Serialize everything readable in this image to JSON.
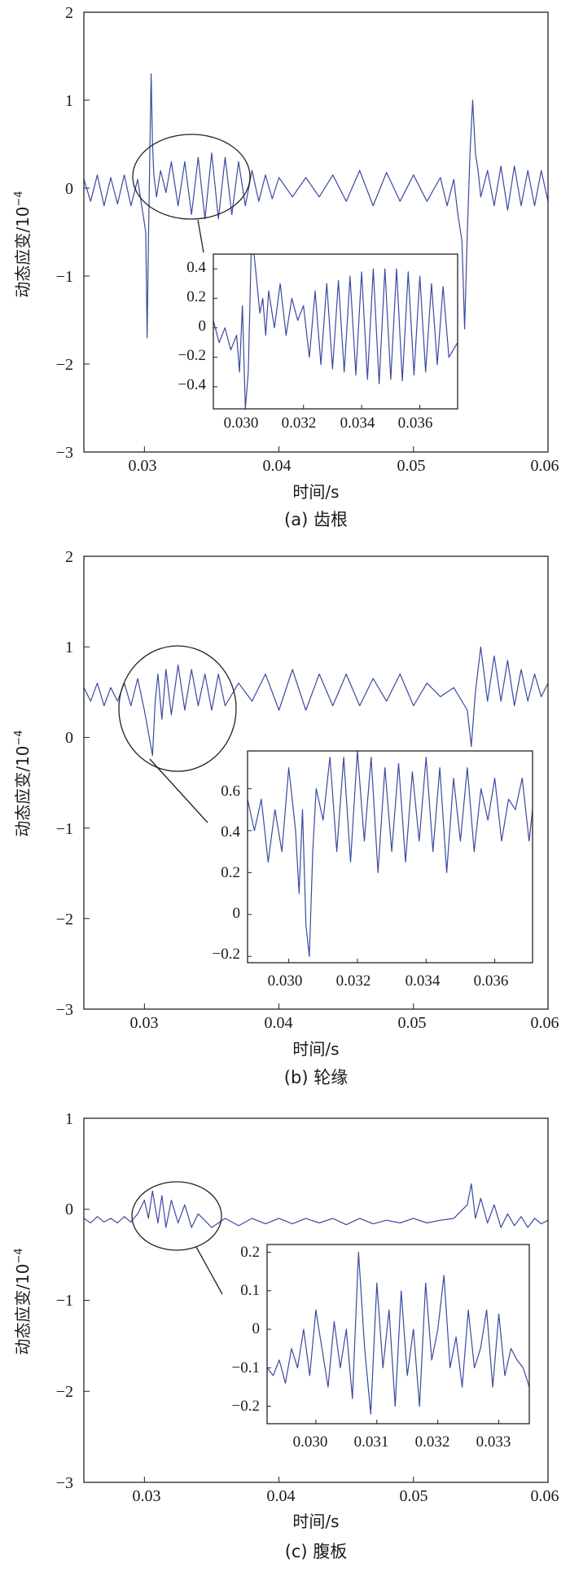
{
  "figure": {
    "line_color": "#3a4aa0",
    "y_unit": "10",
    "y_exponent": "−4"
  },
  "chart_data": [
    {
      "type": "line",
      "caption": "(a) 齿根",
      "xlabel": "时间/s",
      "ylabel": "动态应变/10",
      "ylabel_exp": "−4",
      "xlim": [
        0.0255,
        0.06
      ],
      "ylim": [
        -3,
        2
      ],
      "xticks": [
        0.03,
        0.04,
        0.05,
        0.06
      ],
      "xtick_labels": [
        "0.03",
        "0.04",
        "0.05",
        "0.06"
      ],
      "yticks": [
        2,
        1,
        0,
        -1,
        -2,
        -3
      ],
      "ytick_labels": [
        "2",
        "1",
        "0",
        "−1",
        "−2",
        "−3"
      ],
      "series": [
        {
          "name": "strain",
          "x": [
            0.0255,
            0.026,
            0.0265,
            0.027,
            0.0275,
            0.028,
            0.0285,
            0.029,
            0.0295,
            0.0298,
            0.0301,
            0.0302,
            0.0303,
            0.0304,
            0.0305,
            0.0306,
            0.0307,
            0.0309,
            0.0312,
            0.0316,
            0.032,
            0.0325,
            0.033,
            0.0335,
            0.034,
            0.0345,
            0.035,
            0.0355,
            0.036,
            0.0365,
            0.037,
            0.0375,
            0.038,
            0.0385,
            0.039,
            0.0395,
            0.04,
            0.041,
            0.042,
            0.043,
            0.044,
            0.045,
            0.046,
            0.047,
            0.048,
            0.049,
            0.05,
            0.051,
            0.052,
            0.0525,
            0.053,
            0.0533,
            0.0536,
            0.0538,
            0.054,
            0.0542,
            0.0544,
            0.0546,
            0.0548,
            0.055,
            0.0555,
            0.056,
            0.0565,
            0.057,
            0.0575,
            0.058,
            0.0585,
            0.059,
            0.0595,
            0.06
          ],
          "values": [
            0.1,
            -0.15,
            0.15,
            -0.2,
            0.12,
            -0.18,
            0.15,
            -0.2,
            0.1,
            -0.2,
            -0.5,
            -1.7,
            -0.6,
            0.4,
            1.3,
            0.5,
            0.15,
            -0.1,
            0.2,
            -0.05,
            0.3,
            -0.2,
            0.3,
            -0.3,
            0.35,
            -0.35,
            0.4,
            -0.35,
            0.35,
            -0.3,
            0.3,
            -0.2,
            0.2,
            -0.15,
            0.15,
            -0.12,
            0.12,
            -0.1,
            0.12,
            -0.1,
            0.15,
            -0.15,
            0.2,
            -0.2,
            0.18,
            -0.15,
            0.15,
            -0.15,
            0.12,
            -0.2,
            0.1,
            -0.3,
            -0.6,
            -1.6,
            -0.5,
            0.4,
            1.0,
            0.4,
            0.2,
            -0.1,
            0.2,
            -0.2,
            0.25,
            -0.25,
            0.25,
            -0.2,
            0.2,
            -0.2,
            0.2,
            -0.15
          ]
        }
      ],
      "inset": {
        "xlim": [
          0.0289,
          0.0373
        ],
        "ylim": [
          -0.55,
          0.5
        ],
        "xticks": [
          0.03,
          0.032,
          0.034,
          0.036
        ],
        "xtick_labels": [
          "0.030",
          "0.032",
          "0.034",
          "0.036"
        ],
        "yticks": [
          0.4,
          0.2,
          0,
          -0.2,
          -0.4
        ],
        "ytick_labels": [
          "0.4",
          "0.2",
          "0",
          "−0.2",
          "−0.4"
        ],
        "x": [
          0.0289,
          0.0291,
          0.0293,
          0.0295,
          0.0297,
          0.0298,
          0.0299,
          0.03,
          0.0301,
          0.0302,
          0.0303,
          0.0304,
          0.0305,
          0.0306,
          0.0307,
          0.0308,
          0.031,
          0.0312,
          0.0314,
          0.0316,
          0.0318,
          0.032,
          0.0322,
          0.0324,
          0.0326,
          0.0328,
          0.033,
          0.0332,
          0.0334,
          0.0336,
          0.0338,
          0.034,
          0.0342,
          0.0344,
          0.0346,
          0.0348,
          0.035,
          0.0352,
          0.0354,
          0.0356,
          0.0358,
          0.036,
          0.0362,
          0.0364,
          0.0366,
          0.0368,
          0.037,
          0.0373
        ],
        "values": [
          0.05,
          -0.1,
          0.0,
          -0.15,
          -0.05,
          -0.3,
          0.15,
          -0.55,
          -0.3,
          0.5,
          0.5,
          0.3,
          0.1,
          0.2,
          -0.05,
          0.25,
          0.0,
          0.3,
          -0.05,
          0.2,
          0.05,
          0.15,
          -0.2,
          0.25,
          -0.25,
          0.3,
          -0.28,
          0.32,
          -0.3,
          0.35,
          -0.32,
          0.38,
          -0.35,
          0.4,
          -0.38,
          0.4,
          -0.35,
          0.4,
          -0.36,
          0.38,
          -0.32,
          0.35,
          -0.3,
          0.3,
          -0.25,
          0.28,
          -0.2,
          -0.1
        ]
      }
    },
    {
      "type": "line",
      "caption": "(b) 轮缘",
      "xlabel": "时间/s",
      "ylabel": "动态应变/10",
      "ylabel_exp": "−4",
      "xlim": [
        0.0255,
        0.06
      ],
      "ylim": [
        -3,
        2
      ],
      "xticks": [
        0.03,
        0.04,
        0.05,
        0.06
      ],
      "xtick_labels": [
        "0.03",
        "0.04",
        "0.05",
        "0.06"
      ],
      "yticks": [
        2,
        1,
        0,
        -1,
        -2,
        -3
      ],
      "ytick_labels": [
        "2",
        "1",
        "0",
        "−1",
        "−2",
        "−3"
      ],
      "series": [
        {
          "name": "strain",
          "x": [
            0.0255,
            0.026,
            0.0265,
            0.027,
            0.0275,
            0.028,
            0.0285,
            0.029,
            0.0295,
            0.03,
            0.0303,
            0.0306,
            0.0308,
            0.031,
            0.0313,
            0.0316,
            0.032,
            0.0325,
            0.033,
            0.0335,
            0.034,
            0.0345,
            0.035,
            0.0355,
            0.036,
            0.037,
            0.038,
            0.039,
            0.04,
            0.041,
            0.042,
            0.043,
            0.044,
            0.045,
            0.046,
            0.047,
            0.048,
            0.049,
            0.05,
            0.051,
            0.052,
            0.053,
            0.054,
            0.0543,
            0.0546,
            0.055,
            0.0555,
            0.056,
            0.0565,
            0.057,
            0.0575,
            0.058,
            0.0585,
            0.059,
            0.0595,
            0.06
          ],
          "values": [
            0.55,
            0.4,
            0.6,
            0.35,
            0.55,
            0.4,
            0.6,
            0.35,
            0.65,
            0.3,
            0.05,
            -0.2,
            0.4,
            0.7,
            0.2,
            0.75,
            0.25,
            0.8,
            0.3,
            0.75,
            0.35,
            0.7,
            0.3,
            0.7,
            0.35,
            0.6,
            0.4,
            0.7,
            0.3,
            0.75,
            0.3,
            0.7,
            0.35,
            0.7,
            0.35,
            0.65,
            0.4,
            0.7,
            0.35,
            0.6,
            0.45,
            0.55,
            0.3,
            -0.1,
            0.5,
            1.0,
            0.4,
            0.9,
            0.4,
            0.85,
            0.35,
            0.75,
            0.4,
            0.7,
            0.45,
            0.6
          ]
        }
      ],
      "inset": {
        "xlim": [
          0.0288,
          0.0371
        ],
        "ylim": [
          -0.23,
          0.78
        ],
        "xticks": [
          0.03,
          0.032,
          0.034,
          0.036
        ],
        "xtick_labels": [
          "0.030",
          "0.032",
          "0.034",
          "0.036"
        ],
        "yticks": [
          0.6,
          0.4,
          0.2,
          0,
          -0.2
        ],
        "ytick_labels": [
          "0.6",
          "0.4",
          "0.2",
          "0",
          "−0.2"
        ],
        "x": [
          0.0288,
          0.029,
          0.0292,
          0.0294,
          0.0296,
          0.0298,
          0.03,
          0.0302,
          0.0303,
          0.0304,
          0.0305,
          0.0306,
          0.0307,
          0.0308,
          0.031,
          0.0312,
          0.0314,
          0.0316,
          0.0318,
          0.032,
          0.0322,
          0.0324,
          0.0326,
          0.0328,
          0.033,
          0.0332,
          0.0334,
          0.0336,
          0.0338,
          0.034,
          0.0342,
          0.0344,
          0.0346,
          0.0348,
          0.035,
          0.0352,
          0.0354,
          0.0356,
          0.0358,
          0.036,
          0.0362,
          0.0364,
          0.0366,
          0.0368,
          0.037,
          0.0371
        ],
        "values": [
          0.55,
          0.4,
          0.55,
          0.25,
          0.5,
          0.3,
          0.7,
          0.4,
          0.1,
          0.5,
          -0.05,
          -0.2,
          0.3,
          0.6,
          0.45,
          0.75,
          0.3,
          0.75,
          0.25,
          0.78,
          0.35,
          0.75,
          0.2,
          0.7,
          0.3,
          0.72,
          0.25,
          0.68,
          0.35,
          0.75,
          0.3,
          0.7,
          0.2,
          0.65,
          0.35,
          0.7,
          0.3,
          0.6,
          0.45,
          0.65,
          0.35,
          0.55,
          0.5,
          0.65,
          0.35,
          0.5
        ]
      }
    },
    {
      "type": "line",
      "caption": "(c) 腹板",
      "xlabel": "时间/s",
      "ylabel": "动态应变/10",
      "ylabel_exp": "−4",
      "xlim": [
        0.0255,
        0.06
      ],
      "ylim": [
        -3,
        1
      ],
      "xticks": [
        0.03,
        0.04,
        0.05,
        0.06
      ],
      "xtick_labels": [
        "0.03",
        "0.04",
        "0.05",
        "0.06"
      ],
      "yticks": [
        1,
        0,
        -1,
        -2,
        -3
      ],
      "ytick_labels": [
        "1",
        "0",
        "−1",
        "−2",
        "−3"
      ],
      "series": [
        {
          "name": "strain",
          "x": [
            0.0255,
            0.026,
            0.0265,
            0.027,
            0.0275,
            0.028,
            0.0285,
            0.029,
            0.0295,
            0.03,
            0.0303,
            0.0306,
            0.031,
            0.0313,
            0.0316,
            0.032,
            0.0325,
            0.033,
            0.0335,
            0.034,
            0.035,
            0.036,
            0.037,
            0.038,
            0.039,
            0.04,
            0.041,
            0.042,
            0.043,
            0.044,
            0.045,
            0.046,
            0.047,
            0.048,
            0.049,
            0.05,
            0.051,
            0.052,
            0.053,
            0.054,
            0.0543,
            0.0546,
            0.055,
            0.0555,
            0.056,
            0.0565,
            0.057,
            0.0575,
            0.058,
            0.0585,
            0.059,
            0.0595,
            0.06
          ],
          "values": [
            -0.1,
            -0.15,
            -0.08,
            -0.14,
            -0.1,
            -0.15,
            -0.08,
            -0.14,
            -0.05,
            0.1,
            -0.1,
            0.2,
            -0.15,
            0.15,
            -0.2,
            0.1,
            -0.15,
            0.05,
            -0.2,
            -0.05,
            -0.2,
            -0.1,
            -0.18,
            -0.1,
            -0.16,
            -0.1,
            -0.16,
            -0.1,
            -0.15,
            -0.1,
            -0.17,
            -0.1,
            -0.16,
            -0.12,
            -0.15,
            -0.1,
            -0.15,
            -0.12,
            -0.1,
            0.05,
            0.28,
            -0.1,
            0.12,
            -0.15,
            0.05,
            -0.2,
            -0.05,
            -0.18,
            -0.08,
            -0.2,
            -0.1,
            -0.16,
            -0.12
          ]
        }
      ],
      "inset": {
        "xlim": [
          0.0292,
          0.0335
        ],
        "ylim": [
          -0.245,
          0.22
        ],
        "xticks": [
          0.03,
          0.031,
          0.032,
          0.033
        ],
        "xtick_labels": [
          "0.030",
          "0.031",
          "0.032",
          "0.033"
        ],
        "yticks": [
          0.2,
          0.1,
          0,
          -0.1,
          -0.2
        ],
        "ytick_labels": [
          "0.2",
          "0.1",
          "0",
          "−0.1",
          "−0.2"
        ],
        "x": [
          0.0292,
          0.0293,
          0.0294,
          0.0295,
          0.0296,
          0.0297,
          0.0298,
          0.0299,
          0.03,
          0.0301,
          0.0302,
          0.0303,
          0.0304,
          0.0305,
          0.0306,
          0.0307,
          0.0308,
          0.0309,
          0.031,
          0.0311,
          0.0312,
          0.0313,
          0.0314,
          0.0315,
          0.0316,
          0.0317,
          0.0318,
          0.0319,
          0.032,
          0.0321,
          0.0322,
          0.0323,
          0.0324,
          0.0325,
          0.0326,
          0.0327,
          0.0328,
          0.0329,
          0.033,
          0.0331,
          0.0332,
          0.0333,
          0.0334,
          0.0335
        ],
        "values": [
          -0.1,
          -0.12,
          -0.08,
          -0.14,
          -0.05,
          -0.1,
          0.0,
          -0.12,
          0.05,
          -0.05,
          -0.15,
          0.02,
          -0.1,
          0.0,
          -0.18,
          0.2,
          -0.05,
          -0.22,
          0.12,
          -0.1,
          0.05,
          -0.2,
          0.1,
          -0.12,
          0.0,
          -0.2,
          0.12,
          -0.08,
          0.0,
          0.14,
          -0.1,
          -0.02,
          -0.15,
          0.05,
          -0.1,
          -0.05,
          0.05,
          -0.15,
          0.04,
          -0.12,
          -0.05,
          -0.08,
          -0.1,
          -0.15
        ]
      }
    }
  ]
}
